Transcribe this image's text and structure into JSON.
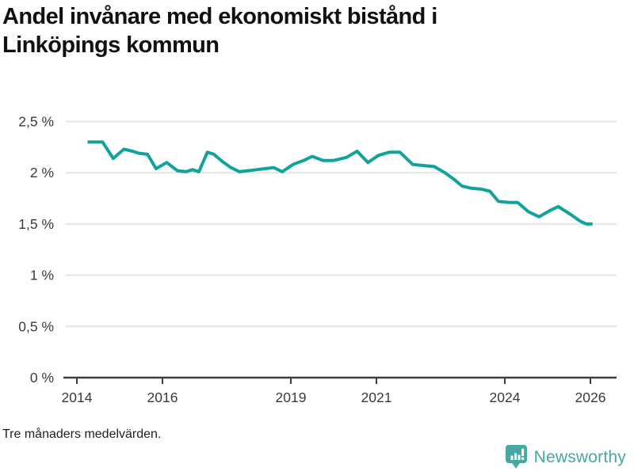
{
  "header": {
    "title_lines": [
      "Andel invånare med ekonomiskt bistånd i",
      "Linköpings kommun"
    ]
  },
  "footer": {
    "note": "Tre månaders medelvärden.",
    "brand": "Newsworthy"
  },
  "colors": {
    "line": "#11a39b",
    "brand_teal": "#45a8a2",
    "grid": "#e4e4e4",
    "axis": "#3d3d3d",
    "tick_text": "#3a3a3a",
    "title_text": "#111111"
  },
  "chart_data": {
    "type": "line",
    "title": "Andel invånare med ekonomiskt bistånd i Linköpings kommun",
    "series_name": "Andel invånare med ekonomiskt bistånd",
    "unit": "%",
    "grid": "horizontal",
    "legend": "none",
    "xlim": [
      2013.7,
      2026.6
    ],
    "ylim": [
      0,
      2.7
    ],
    "x_ticks": {
      "values": [
        2014,
        2016,
        2019,
        2021,
        2024,
        2026
      ],
      "labels": [
        "2014",
        "2016",
        "2019",
        "2021",
        "2024",
        "2026"
      ]
    },
    "y_ticks": {
      "values": [
        0,
        0.5,
        1,
        1.5,
        2,
        2.5
      ],
      "labels": [
        "0 %",
        "0,5 %",
        "1 %",
        "1,5 %",
        "2 %",
        "2,5 %"
      ]
    },
    "x": [
      2014.25,
      2014.6,
      2014.85,
      2015.1,
      2015.3,
      2015.45,
      2015.65,
      2015.85,
      2016.1,
      2016.35,
      2016.55,
      2016.7,
      2016.85,
      2017.05,
      2017.2,
      2017.4,
      2017.6,
      2017.8,
      2018.0,
      2018.2,
      2018.4,
      2018.6,
      2018.8,
      2019.05,
      2019.3,
      2019.5,
      2019.75,
      2020.0,
      2020.3,
      2020.55,
      2020.8,
      2021.05,
      2021.3,
      2021.55,
      2021.85,
      2022.1,
      2022.35,
      2022.6,
      2022.8,
      2023.0,
      2023.2,
      2023.45,
      2023.65,
      2023.85,
      2024.1,
      2024.3,
      2024.55,
      2024.8,
      2025.05,
      2025.25,
      2025.55,
      2025.75,
      2025.9,
      2026.05
    ],
    "values": [
      2.3,
      2.3,
      2.14,
      2.23,
      2.21,
      2.19,
      2.18,
      2.04,
      2.1,
      2.02,
      2.01,
      2.03,
      2.01,
      2.2,
      2.18,
      2.11,
      2.05,
      2.01,
      2.02,
      2.03,
      2.04,
      2.05,
      2.01,
      2.08,
      2.12,
      2.16,
      2.12,
      2.12,
      2.15,
      2.21,
      2.1,
      2.17,
      2.2,
      2.2,
      2.08,
      2.07,
      2.06,
      2.0,
      1.94,
      1.87,
      1.85,
      1.84,
      1.82,
      1.72,
      1.71,
      1.71,
      1.62,
      1.57,
      1.63,
      1.67,
      1.59,
      1.53,
      1.5,
      1.5
    ]
  }
}
